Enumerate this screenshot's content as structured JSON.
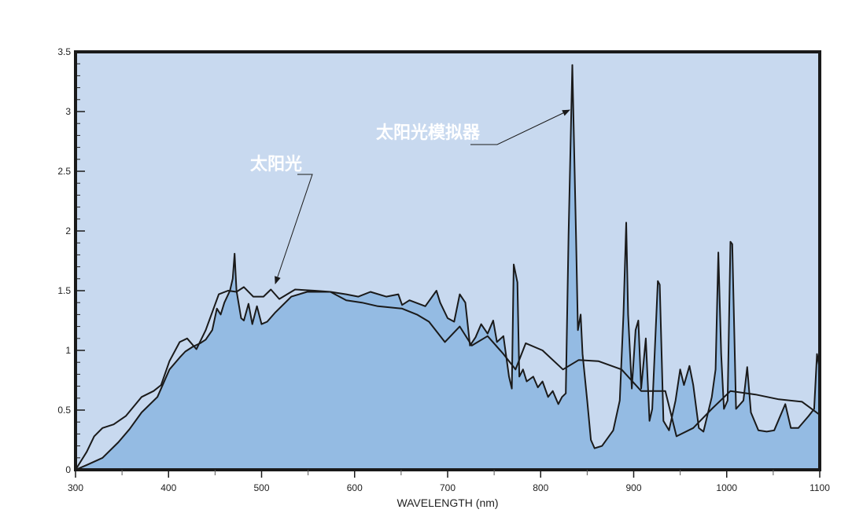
{
  "chart_data": {
    "type": "area",
    "title": "",
    "xlabel": "WAVELENGTH (nm)",
    "ylabel": "",
    "xlim": [
      300,
      1100
    ],
    "ylim": [
      0,
      3.5
    ],
    "grid": false,
    "x_ticks": [
      "300",
      "400",
      "500",
      "600",
      "700",
      "800",
      "900",
      "1000",
      "1100"
    ],
    "y_ticks": [
      "0",
      "0.5",
      "1",
      "1.5",
      "2",
      "2.5",
      "3",
      "3.5"
    ],
    "colors": {
      "plot_background": "#c8d9ef",
      "simulator_fill": "#94bbe3",
      "line": "#1a1a1a"
    },
    "series": [
      {
        "name": "太阳光模拟器",
        "style": "filled",
        "points": [
          [
            300,
            0
          ],
          [
            312,
            0.04
          ],
          [
            329,
            0.1
          ],
          [
            346,
            0.23
          ],
          [
            358,
            0.34
          ],
          [
            371,
            0.48
          ],
          [
            388,
            0.61
          ],
          [
            401,
            0.84
          ],
          [
            412,
            0.94
          ],
          [
            418,
            0.99
          ],
          [
            426,
            1.03
          ],
          [
            434,
            1.06
          ],
          [
            440,
            1.09
          ],
          [
            447,
            1.17
          ],
          [
            452,
            1.35
          ],
          [
            456,
            1.3
          ],
          [
            460,
            1.4
          ],
          [
            466,
            1.5
          ],
          [
            469,
            1.6
          ],
          [
            471,
            1.81
          ],
          [
            473,
            1.5
          ],
          [
            478,
            1.27
          ],
          [
            481,
            1.25
          ],
          [
            486,
            1.39
          ],
          [
            490,
            1.22
          ],
          [
            495,
            1.37
          ],
          [
            500,
            1.22
          ],
          [
            506,
            1.24
          ],
          [
            515,
            1.32
          ],
          [
            532,
            1.45
          ],
          [
            549,
            1.49
          ],
          [
            574,
            1.49
          ],
          [
            591,
            1.47
          ],
          [
            604,
            1.45
          ],
          [
            617,
            1.49
          ],
          [
            634,
            1.45
          ],
          [
            647,
            1.47
          ],
          [
            651,
            1.38
          ],
          [
            659,
            1.42
          ],
          [
            676,
            1.37
          ],
          [
            688,
            1.5
          ],
          [
            692,
            1.4
          ],
          [
            700,
            1.27
          ],
          [
            707,
            1.24
          ],
          [
            713,
            1.47
          ],
          [
            719,
            1.4
          ],
          [
            724,
            1.04
          ],
          [
            730,
            1.11
          ],
          [
            736,
            1.22
          ],
          [
            743,
            1.14
          ],
          [
            749,
            1.25
          ],
          [
            753,
            1.07
          ],
          [
            760,
            1.12
          ],
          [
            766,
            0.78
          ],
          [
            769,
            0.68
          ],
          [
            771,
            1.72
          ],
          [
            775,
            1.57
          ],
          [
            777,
            0.78
          ],
          [
            781,
            0.84
          ],
          [
            785,
            0.74
          ],
          [
            792,
            0.78
          ],
          [
            797,
            0.69
          ],
          [
            802,
            0.74
          ],
          [
            808,
            0.61
          ],
          [
            813,
            0.66
          ],
          [
            819,
            0.55
          ],
          [
            823,
            0.61
          ],
          [
            827,
            0.64
          ],
          [
            830,
            1.96
          ],
          [
            834,
            3.39
          ],
          [
            838,
            1.96
          ],
          [
            840,
            1.17
          ],
          [
            843,
            1.3
          ],
          [
            845,
            0.97
          ],
          [
            850,
            0.58
          ],
          [
            854,
            0.25
          ],
          [
            858,
            0.18
          ],
          [
            866,
            0.2
          ],
          [
            878,
            0.33
          ],
          [
            885,
            0.58
          ],
          [
            889,
            1.3
          ],
          [
            892,
            2.07
          ],
          [
            894,
            1.3
          ],
          [
            898,
            0.68
          ],
          [
            902,
            1.17
          ],
          [
            905,
            1.25
          ],
          [
            908,
            0.68
          ],
          [
            913,
            1.1
          ],
          [
            917,
            0.41
          ],
          [
            920,
            0.51
          ],
          [
            926,
            1.58
          ],
          [
            928,
            1.55
          ],
          [
            932,
            0.41
          ],
          [
            938,
            0.33
          ],
          [
            945,
            0.58
          ],
          [
            950,
            0.84
          ],
          [
            954,
            0.71
          ],
          [
            960,
            0.87
          ],
          [
            964,
            0.71
          ],
          [
            970,
            0.35
          ],
          [
            975,
            0.32
          ],
          [
            984,
            0.61
          ],
          [
            988,
            0.84
          ],
          [
            991,
            1.82
          ],
          [
            994,
            0.97
          ],
          [
            997,
            0.51
          ],
          [
            1001,
            0.58
          ],
          [
            1004,
            1.91
          ],
          [
            1006,
            1.89
          ],
          [
            1010,
            0.51
          ],
          [
            1018,
            0.58
          ],
          [
            1022,
            0.86
          ],
          [
            1026,
            0.48
          ],
          [
            1034,
            0.33
          ],
          [
            1043,
            0.32
          ],
          [
            1051,
            0.33
          ],
          [
            1063,
            0.55
          ],
          [
            1069,
            0.35
          ],
          [
            1077,
            0.35
          ],
          [
            1088,
            0.45
          ],
          [
            1094,
            0.51
          ],
          [
            1097,
            0.97
          ],
          [
            1100,
            0.84
          ]
        ]
      },
      {
        "name": "太阳光",
        "style": "line",
        "points": [
          [
            300,
            0
          ],
          [
            312,
            0.15
          ],
          [
            320,
            0.28
          ],
          [
            329,
            0.35
          ],
          [
            341,
            0.38
          ],
          [
            354,
            0.45
          ],
          [
            371,
            0.61
          ],
          [
            384,
            0.66
          ],
          [
            392,
            0.71
          ],
          [
            401,
            0.91
          ],
          [
            412,
            1.07
          ],
          [
            420,
            1.1
          ],
          [
            430,
            1.01
          ],
          [
            440,
            1.17
          ],
          [
            454,
            1.47
          ],
          [
            464,
            1.5
          ],
          [
            473,
            1.49
          ],
          [
            481,
            1.53
          ],
          [
            491,
            1.45
          ],
          [
            502,
            1.45
          ],
          [
            510,
            1.51
          ],
          [
            519,
            1.43
          ],
          [
            536,
            1.51
          ],
          [
            557,
            1.5
          ],
          [
            574,
            1.49
          ],
          [
            591,
            1.42
          ],
          [
            608,
            1.4
          ],
          [
            625,
            1.37
          ],
          [
            651,
            1.35
          ],
          [
            667,
            1.3
          ],
          [
            680,
            1.24
          ],
          [
            697,
            1.07
          ],
          [
            713,
            1.2
          ],
          [
            726,
            1.04
          ],
          [
            743,
            1.12
          ],
          [
            760,
            0.97
          ],
          [
            773,
            0.84
          ],
          [
            784,
            1.06
          ],
          [
            802,
            1.0
          ],
          [
            824,
            0.84
          ],
          [
            841,
            0.92
          ],
          [
            862,
            0.91
          ],
          [
            887,
            0.84
          ],
          [
            908,
            0.66
          ],
          [
            934,
            0.66
          ],
          [
            946,
            0.28
          ],
          [
            964,
            0.35
          ],
          [
            984,
            0.51
          ],
          [
            1004,
            0.66
          ],
          [
            1031,
            0.63
          ],
          [
            1056,
            0.59
          ],
          [
            1081,
            0.57
          ],
          [
            1100,
            0.46
          ]
        ]
      }
    ],
    "annotations": [
      {
        "text": "太阳光",
        "points_to": [
          510,
          1.55
        ]
      },
      {
        "text": "太阳光模拟器",
        "points_to": [
          833,
          3.0
        ]
      }
    ]
  }
}
